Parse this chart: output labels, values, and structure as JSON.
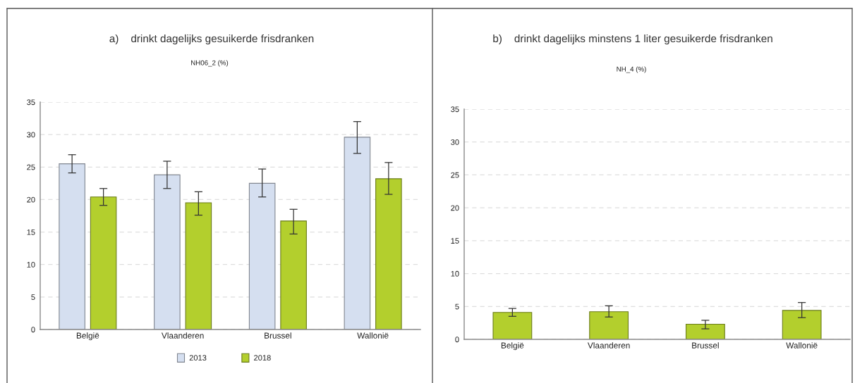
{
  "chart_data": [
    {
      "type": "bar",
      "title": "a)    drinkt dagelijks gesuikerde frisdranken",
      "subtitle": "NH06_2 (%)",
      "categories": [
        "België",
        "Vlaanderen",
        "Brussel",
        "Wallonië"
      ],
      "series": [
        {
          "name": "2013",
          "color": "#d5dff0",
          "values": [
            25.5,
            23.8,
            22.5,
            29.6
          ],
          "errors": [
            [
              24.1,
              26.9
            ],
            [
              21.7,
              25.9
            ],
            [
              20.4,
              24.7
            ],
            [
              27.1,
              32.0
            ]
          ]
        },
        {
          "name": "2018",
          "color": "#b3cf2d",
          "values": [
            20.4,
            19.5,
            16.7,
            23.2
          ],
          "errors": [
            [
              19.1,
              21.7
            ],
            [
              17.6,
              21.2
            ],
            [
              14.7,
              18.5
            ],
            [
              20.8,
              25.7
            ]
          ]
        }
      ],
      "ylim": [
        0,
        35
      ],
      "yticks": [
        0,
        5,
        10,
        15,
        20,
        25,
        30,
        35
      ],
      "grid": "y",
      "legend": "bottom"
    },
    {
      "type": "bar",
      "title": "b)    drinkt dagelijks minstens 1 liter gesuikerde frisdranken",
      "subtitle": "NH_4 (%)",
      "categories": [
        "België",
        "Vlaanderen",
        "Brussel",
        "Wallonië"
      ],
      "series": [
        {
          "color": "#b3cf2d",
          "values": [
            4.1,
            4.2,
            2.3,
            4.4
          ],
          "errors": [
            [
              3.5,
              4.7
            ],
            [
              3.4,
              5.1
            ],
            [
              1.6,
              2.9
            ],
            [
              3.3,
              5.6
            ]
          ]
        }
      ],
      "ylim": [
        0,
        35
      ],
      "yticks": [
        0,
        5,
        10,
        15,
        20,
        25,
        30,
        35
      ],
      "grid": "y",
      "legend": false
    }
  ]
}
